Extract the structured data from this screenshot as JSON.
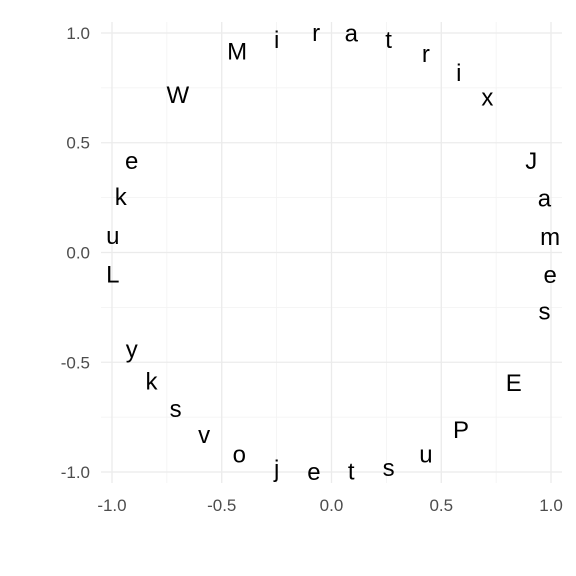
{
  "chart_data": {
    "type": "scatter",
    "title": "",
    "xlabel": "",
    "ylabel": "",
    "xlim": [
      -1.05,
      1.05
    ],
    "ylim": [
      -1.05,
      1.05
    ],
    "x_ticks": [
      -1.0,
      -0.5,
      0.0,
      0.5,
      1.0
    ],
    "y_ticks": [
      -1.0,
      -0.5,
      0.0,
      0.5,
      1.0
    ],
    "x_tick_labels": [
      "-1.0",
      "-0.5",
      "0.0",
      "0.5",
      "1.0"
    ],
    "y_tick_labels": [
      "-1.0",
      "-0.5",
      "0.0",
      "0.5",
      "1.0"
    ],
    "grid": true,
    "points": [
      {
        "x": -0.07,
        "y": 0.998,
        "label": "r"
      },
      {
        "x": 0.09,
        "y": 0.996,
        "label": "a"
      },
      {
        "x": 0.26,
        "y": 0.966,
        "label": "t"
      },
      {
        "x": 0.43,
        "y": 0.903,
        "label": "r"
      },
      {
        "x": 0.58,
        "y": 0.815,
        "label": "i"
      },
      {
        "x": 0.71,
        "y": 0.704,
        "label": "x"
      },
      {
        "x": 0.91,
        "y": 0.415,
        "label": "J"
      },
      {
        "x": 0.97,
        "y": 0.244,
        "label": "a"
      },
      {
        "x": 0.996,
        "y": 0.068,
        "label": "m"
      },
      {
        "x": 0.996,
        "y": -0.105,
        "label": "e"
      },
      {
        "x": 0.97,
        "y": -0.27,
        "label": "s"
      },
      {
        "x": 0.83,
        "y": -0.596,
        "label": "E"
      },
      {
        "x": 0.59,
        "y": -0.81,
        "label": "P"
      },
      {
        "x": 0.43,
        "y": -0.923,
        "label": "u"
      },
      {
        "x": 0.26,
        "y": -0.985,
        "label": "s"
      },
      {
        "x": 0.09,
        "y": -1.0,
        "label": "t"
      },
      {
        "x": -0.08,
        "y": -1.003,
        "label": "e"
      },
      {
        "x": -0.25,
        "y": -0.988,
        "label": "j"
      },
      {
        "x": -0.42,
        "y": -0.923,
        "label": "o"
      },
      {
        "x": -0.58,
        "y": -0.834,
        "label": "v"
      },
      {
        "x": -0.71,
        "y": -0.716,
        "label": "s"
      },
      {
        "x": -0.82,
        "y": -0.589,
        "label": "k"
      },
      {
        "x": -0.91,
        "y": -0.444,
        "label": "y"
      },
      {
        "x": -0.996,
        "y": -0.103,
        "label": "L"
      },
      {
        "x": -0.996,
        "y": 0.073,
        "label": "u"
      },
      {
        "x": -0.96,
        "y": 0.25,
        "label": "k"
      },
      {
        "x": -0.91,
        "y": 0.415,
        "label": "e"
      },
      {
        "x": -0.7,
        "y": 0.716,
        "label": "W"
      },
      {
        "x": -0.43,
        "y": 0.913,
        "label": "M"
      },
      {
        "x": -0.25,
        "y": 0.966,
        "label": "i"
      }
    ]
  }
}
